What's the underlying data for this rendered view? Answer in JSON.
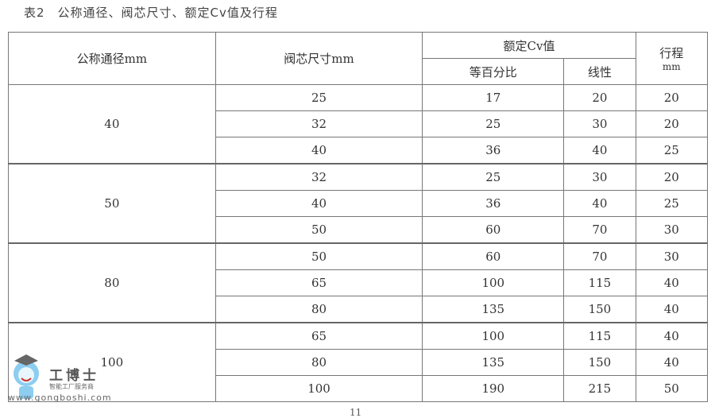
{
  "title": "表2　公称通径、阀芯尺寸、额定Cv值及行程",
  "headers": {
    "dn": "公称通径mm",
    "core": "阀芯尺寸mm",
    "cv": "额定Cv值",
    "cv_eq": "等百分比",
    "cv_lin": "线性",
    "stroke": "行程",
    "stroke_unit": "mm"
  },
  "groups": [
    {
      "dn": "40",
      "rows": [
        [
          "25",
          "17",
          "20",
          "20"
        ],
        [
          "32",
          "25",
          "30",
          "20"
        ],
        [
          "40",
          "36",
          "40",
          "25"
        ]
      ]
    },
    {
      "dn": "50",
      "rows": [
        [
          "32",
          "25",
          "30",
          "20"
        ],
        [
          "40",
          "36",
          "40",
          "25"
        ],
        [
          "50",
          "60",
          "70",
          "30"
        ]
      ]
    },
    {
      "dn": "80",
      "rows": [
        [
          "50",
          "60",
          "70",
          "30"
        ],
        [
          "65",
          "100",
          "115",
          "40"
        ],
        [
          "80",
          "135",
          "150",
          "40"
        ]
      ]
    },
    {
      "dn": "100",
      "rows": [
        [
          "65",
          "100",
          "115",
          "40"
        ],
        [
          "80",
          "135",
          "150",
          "40"
        ],
        [
          "100",
          "190",
          "215",
          "50"
        ]
      ]
    }
  ],
  "watermark": {
    "name": "工博士",
    "tagline": "智能工厂服务商",
    "url": "www.gongboshi.com"
  },
  "page_number": "11"
}
